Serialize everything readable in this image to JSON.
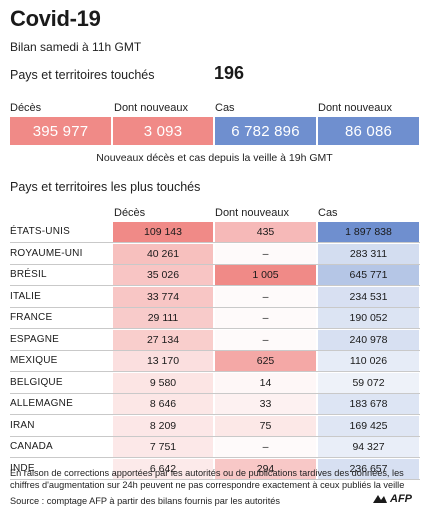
{
  "header": {
    "title": "Covid-19",
    "subtitle": "Bilan samedi à 11h GMT",
    "countries_label": "Pays et territoires touchés",
    "countries_value": "196"
  },
  "summary": {
    "boxes": [
      {
        "label": "Décès",
        "value": "395 977",
        "color": "#f08a87"
      },
      {
        "label": "Dont nouveaux",
        "value": "3 093",
        "color": "#f08a87"
      },
      {
        "label": "Cas",
        "value": "6 782 896",
        "color": "#6f8fcf"
      },
      {
        "label": "Dont nouveaux",
        "value": "86 086",
        "color": "#6f8fcf"
      }
    ],
    "note": "Nouveaux décès et cas depuis la veille à 19h GMT"
  },
  "table": {
    "title": "Pays et territoires les plus touchés",
    "col_deaths": "Décès",
    "col_new": "Dont nouveaux",
    "col_cases": "Cas"
  },
  "chart_data": {
    "type": "table",
    "title": "Pays et territoires les plus touchés",
    "columns": [
      "Décès",
      "Dont nouveaux",
      "Cas"
    ],
    "rows": [
      {
        "country": "ÉTATS-UNIS",
        "deaths": "109 143",
        "new": "435",
        "cases": "1 897 838"
      },
      {
        "country": "ROYAUME-UNI",
        "deaths": "40 261",
        "new": "–",
        "cases": "283 311"
      },
      {
        "country": "BRÉSIL",
        "deaths": "35 026",
        "new": "1 005",
        "cases": "645 771"
      },
      {
        "country": "ITALIE",
        "deaths": "33 774",
        "new": "–",
        "cases": "234 531"
      },
      {
        "country": "FRANCE",
        "deaths": "29 111",
        "new": "–",
        "cases": "190 052"
      },
      {
        "country": "ESPAGNE",
        "deaths": "27 134",
        "new": "–",
        "cases": "240 978"
      },
      {
        "country": "MEXIQUE",
        "deaths": "13 170",
        "new": "625",
        "cases": "110 026"
      },
      {
        "country": "BELGIQUE",
        "deaths": "9 580",
        "new": "14",
        "cases": "59 072"
      },
      {
        "country": "ALLEMAGNE",
        "deaths": "8 646",
        "new": "33",
        "cases": "183 678"
      },
      {
        "country": "IRAN",
        "deaths": "8 209",
        "new": "75",
        "cases": "169 425"
      },
      {
        "country": "CANADA",
        "deaths": "7 751",
        "new": "–",
        "cases": "94 327"
      },
      {
        "country": "INDE",
        "deaths": "6 642",
        "new": "294",
        "cases": "236 657"
      }
    ],
    "deaths_values": [
      109143,
      40261,
      35026,
      33774,
      29111,
      27134,
      13170,
      9580,
      8646,
      8209,
      7751,
      6642
    ],
    "new_values": [
      435,
      0,
      1005,
      0,
      0,
      0,
      625,
      14,
      33,
      75,
      0,
      294
    ],
    "cases_values": [
      1897838,
      283311,
      645771,
      234531,
      190052,
      240978,
      110026,
      59072,
      183678,
      169425,
      94327,
      236657
    ],
    "colors": {
      "deaths": "#f08a87",
      "new": "#f08a87",
      "cases": "#6f8fcf"
    }
  },
  "footer": {
    "footnote": "En raison de corrections apportées par les autorités ou de publications tardives des données, les chiffres d'augmentation sur 24h peuvent ne pas correspondre exactement à ceux publiés la veille",
    "source": "Source : comptage AFP à partir des bilans fournis par les autorités",
    "logo": "AFP"
  }
}
